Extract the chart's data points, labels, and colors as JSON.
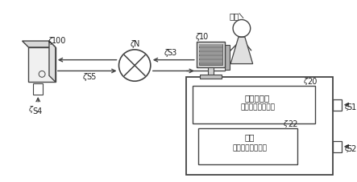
{
  "bg_color": "#ffffff",
  "line_color": "#444444",
  "text_color": "#222222",
  "labels": {
    "user": "用户",
    "node100": "100",
    "nodeN": "N",
    "nodeS3": "S3",
    "node10": "10",
    "node20": "20",
    "node22": "22",
    "S1": "S1",
    "S2": "S2",
    "S4": "S4",
    "S5": "S5",
    "main_app_line1": "主应用程序",
    "main_app_line2": "（第一应用程序）",
    "plugin_line1": "插件",
    "plugin_line2": "（第二应用程序）"
  }
}
